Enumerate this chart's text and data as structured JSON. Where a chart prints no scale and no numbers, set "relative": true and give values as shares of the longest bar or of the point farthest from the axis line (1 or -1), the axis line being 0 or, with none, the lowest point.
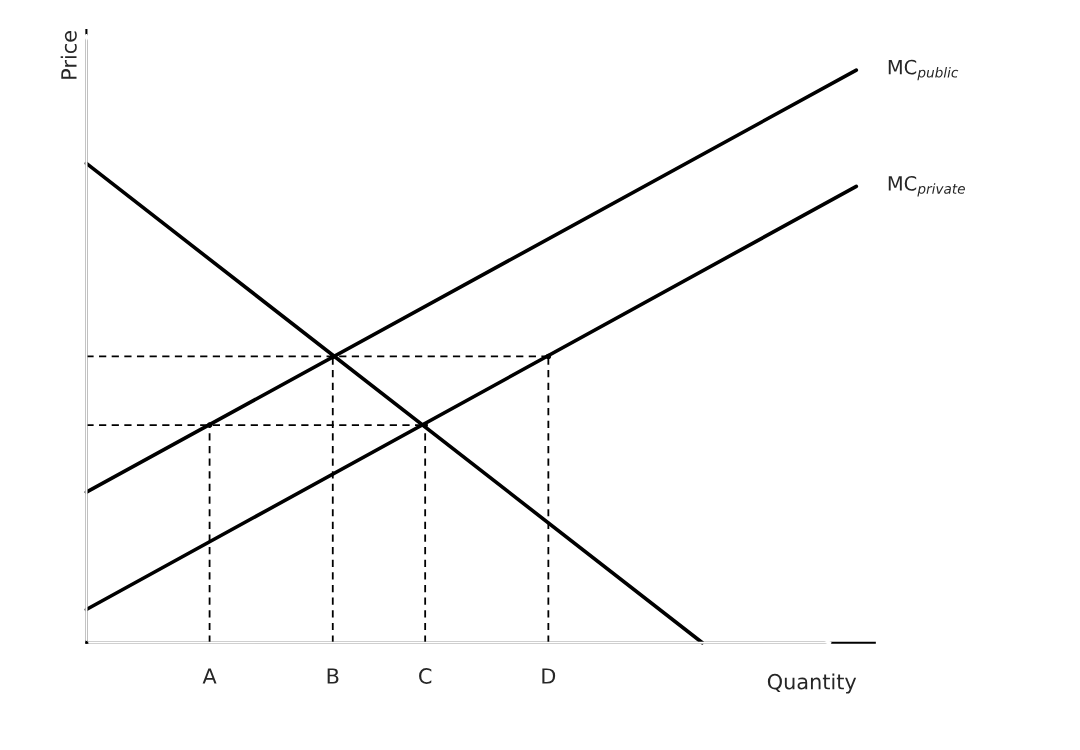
{
  "chart_data": {
    "type": "line",
    "relative": true,
    "xlabel": "Quantity",
    "ylabel": "Price",
    "categories": [
      null,
      null,
      null,
      null,
      "A",
      null,
      null,
      null,
      "B",
      null,
      null,
      "C",
      null,
      null,
      null,
      "D",
      null,
      null,
      null,
      null,
      null,
      null,
      null,
      null,
      null,
      null
    ],
    "tick_labels": "x",
    "grid": false,
    "legend": false,
    "marker": "none",
    "series": [
      {
        "values": [
          0.837,
          null,
          null,
          null,
          null,
          null,
          null,
          null,
          null,
          null,
          null,
          null,
          null,
          null,
          null,
          null,
          null,
          null,
          null,
          null,
          0,
          null,
          null,
          null,
          null,
          null
        ],
        "color": "#000000",
        "line_style": "solid"
      },
      {
        "name": "MC$_{public}$",
        "values": [
          0.263,
          null,
          null,
          null,
          null,
          null,
          null,
          null,
          null,
          null,
          null,
          null,
          null,
          null,
          null,
          null,
          null,
          null,
          null,
          null,
          null,
          null,
          null,
          null,
          null,
          1
        ],
        "color": "#000000",
        "line_style": "solid"
      },
      {
        "name": "MC$_{private}$",
        "values": [
          0.058,
          null,
          null,
          null,
          null,
          null,
          null,
          null,
          null,
          null,
          null,
          null,
          null,
          null,
          null,
          null,
          null,
          null,
          null,
          null,
          null,
          null,
          null,
          null,
          null,
          0.797
        ],
        "color": "#000000",
        "line_style": "solid"
      },
      {
        "values": [
          0.5,
          null,
          null,
          null,
          null,
          null,
          null,
          null,
          null,
          null,
          null,
          null,
          null,
          null,
          null,
          0.5,
          null,
          null,
          null,
          null,
          null,
          null,
          null,
          null,
          null,
          null
        ],
        "color": "#000000",
        "line_style": "dashed"
      },
      {
        "values": [
          0.38,
          null,
          null,
          null,
          null,
          null,
          null,
          null,
          null,
          null,
          null,
          0.38,
          null,
          null,
          null,
          null,
          null,
          null,
          null,
          null,
          null,
          null,
          null,
          null,
          null,
          null
        ],
        "color": "#000000",
        "line_style": "dashed"
      },
      {
        "type": "lollipop",
        "values": [
          null,
          null,
          null,
          null,
          0.38,
          null,
          null,
          null,
          0.5,
          null,
          null,
          0.38,
          null,
          null,
          null,
          0.5,
          null,
          null,
          null,
          null,
          null,
          null,
          null,
          null,
          null,
          null
        ],
        "color": "#000000",
        "line_style": "dashed"
      }
    ]
  }
}
